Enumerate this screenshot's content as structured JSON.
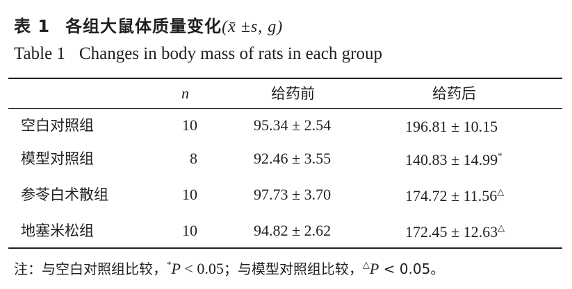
{
  "title_cn": {
    "label": "表 1",
    "text": "各组大鼠体质量变化",
    "stat": "(x̄ ±s, g)"
  },
  "title_en": {
    "label": "Table 1",
    "text": "Changes in body mass of rats in each group"
  },
  "table": {
    "headers": [
      "",
      "n",
      "给药前",
      "给药后"
    ],
    "rows": [
      {
        "group": "空白对照组",
        "n": "10",
        "before": "95.34 ± 2.54",
        "after": "196.81 ± 10.15",
        "mark": ""
      },
      {
        "group": "模型对照组",
        "n": "8",
        "before": "92.46 ± 3.55",
        "after": "140.83 ± 14.99",
        "mark": "*"
      },
      {
        "group": "参苓白术散组",
        "n": "10",
        "before": "97.73 ± 3.70",
        "after": "174.72 ± 11.56",
        "mark": "△"
      },
      {
        "group": "地塞米松组",
        "n": "10",
        "before": "94.82 ± 2.62",
        "after": "172.45 ± 12.63",
        "mark": "△"
      }
    ]
  },
  "note": {
    "part1": "注：与空白对照组比较，",
    "mark1": "*",
    "p1": "P",
    "val1": " < 0.05",
    "part2": "；与模型对照组比较，",
    "mark2": "△",
    "p2": "P",
    "val2": " < 0.05。"
  }
}
